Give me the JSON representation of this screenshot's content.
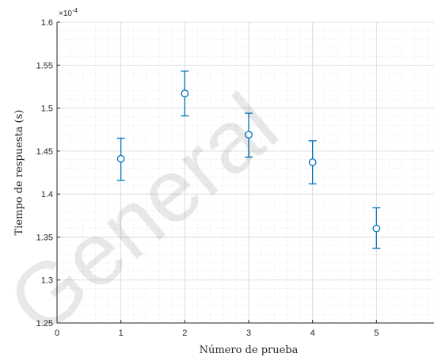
{
  "chart_data": {
    "type": "scatter",
    "title": "",
    "xlabel": "Número de prueba",
    "ylabel": "Tiempo de respuesta (s)",
    "y_exponent_label": "×10",
    "y_exponent_power": "-4",
    "y_scale": 0.0001,
    "xlim": [
      0,
      6
    ],
    "ylim": [
      1.25,
      1.6
    ],
    "x_ticks": [
      0,
      1,
      2,
      3,
      4,
      5
    ],
    "x_tick_labels": [
      "0",
      "1",
      "2",
      "3",
      "4",
      "5"
    ],
    "y_ticks": [
      1.25,
      1.3,
      1.35,
      1.4,
      1.45,
      1.5,
      1.55,
      1.6
    ],
    "y_tick_labels": [
      "1.25",
      "1.3",
      "1.35",
      "1.4",
      "1.45",
      "1.5",
      "1.55",
      "1.6"
    ],
    "grid": true,
    "minor_grid": true,
    "marker": "open-circle",
    "series": [
      {
        "x": [
          1,
          2,
          3,
          4,
          5
        ],
        "y": [
          1.441,
          1.517,
          1.469,
          1.437,
          1.36
        ],
        "y_lower": [
          1.416,
          1.491,
          1.443,
          1.412,
          1.337
        ],
        "y_upper": [
          1.465,
          1.543,
          1.494,
          1.462,
          1.384
        ]
      }
    ],
    "series_color": "#0072BD",
    "watermark_text": "General"
  }
}
